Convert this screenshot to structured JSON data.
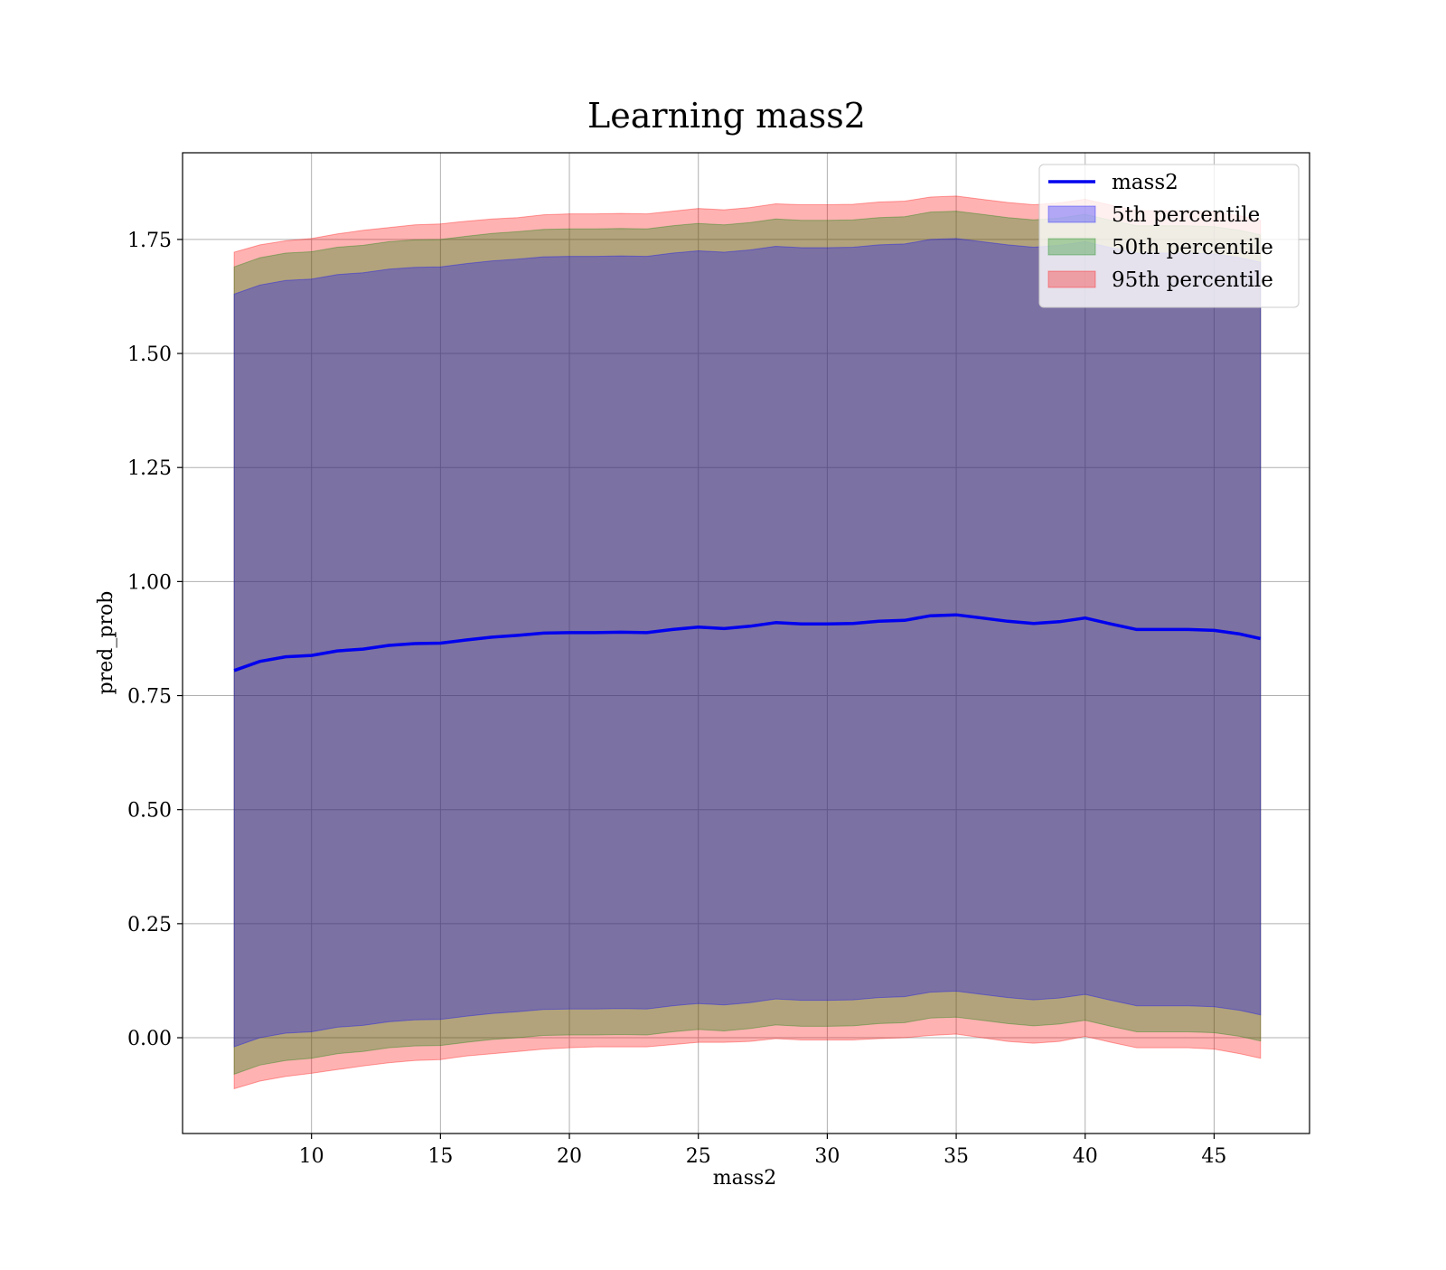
{
  "chart_data": {
    "type": "area",
    "title": "Learning mass2",
    "xlabel": "mass2",
    "ylabel": "pred_prob",
    "xlim": [
      5.0,
      48.7
    ],
    "ylim": [
      -0.21,
      1.94
    ],
    "xticks": [
      10,
      15,
      20,
      25,
      30,
      35,
      40,
      45
    ],
    "xtick_labels": [
      "10",
      "15",
      "20",
      "25",
      "30",
      "35",
      "40",
      "45"
    ],
    "yticks": [
      0.0,
      0.25,
      0.5,
      0.75,
      1.0,
      1.25,
      1.5,
      1.75
    ],
    "ytick_labels": [
      "0.00",
      "0.25",
      "0.50",
      "0.75",
      "1.00",
      "1.25",
      "1.50",
      "1.75"
    ],
    "grid": true,
    "legend_position": "upper-right",
    "x": [
      7.0,
      8.0,
      9.0,
      10.0,
      11.0,
      12.0,
      13.0,
      14.0,
      15.0,
      16.0,
      17.0,
      18.0,
      19.0,
      20.0,
      21.0,
      22.0,
      23.0,
      24.0,
      25.0,
      26.0,
      27.0,
      28.0,
      29.0,
      30.0,
      31.0,
      32.0,
      33.0,
      34.0,
      35.0,
      36.0,
      37.0,
      38.0,
      39.0,
      40.0,
      41.0,
      42.0,
      43.0,
      44.0,
      45.0,
      46.0,
      46.8
    ],
    "line": {
      "name": "mass2",
      "color": "#0000ee",
      "values": [
        0.805,
        0.825,
        0.835,
        0.838,
        0.848,
        0.852,
        0.86,
        0.864,
        0.865,
        0.872,
        0.878,
        0.882,
        0.887,
        0.888,
        0.888,
        0.889,
        0.888,
        0.895,
        0.9,
        0.897,
        0.902,
        0.91,
        0.907,
        0.907,
        0.908,
        0.913,
        0.915,
        0.925,
        0.927,
        0.92,
        0.913,
        0.908,
        0.912,
        0.92,
        0.907,
        0.895,
        0.895,
        0.895,
        0.893,
        0.885,
        0.875
      ]
    },
    "bands": [
      {
        "name": "95th percentile",
        "color": "#ff0000",
        "opacity": 0.3,
        "lower": [
          -0.112,
          -0.095,
          -0.085,
          -0.078,
          -0.07,
          -0.062,
          -0.055,
          -0.05,
          -0.048,
          -0.04,
          -0.035,
          -0.03,
          -0.025,
          -0.022,
          -0.02,
          -0.02,
          -0.02,
          -0.015,
          -0.01,
          -0.01,
          -0.008,
          -0.002,
          -0.005,
          -0.005,
          -0.005,
          -0.002,
          0.0,
          0.005,
          0.008,
          0.0,
          -0.008,
          -0.012,
          -0.008,
          0.003,
          -0.01,
          -0.022,
          -0.022,
          -0.022,
          -0.025,
          -0.035,
          -0.045
        ],
        "upper": [
          1.722,
          1.738,
          1.747,
          1.752,
          1.762,
          1.77,
          1.776,
          1.782,
          1.784,
          1.79,
          1.795,
          1.798,
          1.804,
          1.806,
          1.806,
          1.807,
          1.806,
          1.812,
          1.818,
          1.815,
          1.82,
          1.828,
          1.826,
          1.826,
          1.827,
          1.832,
          1.834,
          1.843,
          1.845,
          1.838,
          1.831,
          1.826,
          1.83,
          1.838,
          1.825,
          1.813,
          1.813,
          1.813,
          1.81,
          1.802,
          1.792
        ]
      },
      {
        "name": "50th percentile",
        "color": "#008000",
        "opacity": 0.3,
        "lower": [
          -0.08,
          -0.06,
          -0.05,
          -0.045,
          -0.035,
          -0.03,
          -0.022,
          -0.018,
          -0.017,
          -0.01,
          -0.004,
          0.0,
          0.005,
          0.006,
          0.006,
          0.007,
          0.006,
          0.013,
          0.018,
          0.015,
          0.02,
          0.028,
          0.025,
          0.025,
          0.026,
          0.031,
          0.033,
          0.043,
          0.045,
          0.038,
          0.031,
          0.026,
          0.03,
          0.038,
          0.025,
          0.013,
          0.013,
          0.013,
          0.011,
          0.003,
          -0.007
        ],
        "upper": [
          1.69,
          1.71,
          1.72,
          1.723,
          1.733,
          1.737,
          1.745,
          1.749,
          1.75,
          1.757,
          1.763,
          1.767,
          1.772,
          1.773,
          1.773,
          1.774,
          1.773,
          1.78,
          1.785,
          1.782,
          1.787,
          1.795,
          1.792,
          1.792,
          1.793,
          1.798,
          1.8,
          1.81,
          1.812,
          1.805,
          1.798,
          1.793,
          1.797,
          1.805,
          1.792,
          1.78,
          1.78,
          1.78,
          1.778,
          1.77,
          1.76
        ]
      },
      {
        "name": "5th percentile",
        "color": "#0000ff",
        "opacity": 0.3,
        "lower": [
          -0.02,
          0.0,
          0.01,
          0.013,
          0.023,
          0.027,
          0.035,
          0.039,
          0.04,
          0.047,
          0.053,
          0.057,
          0.062,
          0.063,
          0.063,
          0.064,
          0.063,
          0.07,
          0.075,
          0.072,
          0.077,
          0.085,
          0.082,
          0.082,
          0.083,
          0.088,
          0.09,
          0.1,
          0.102,
          0.095,
          0.088,
          0.083,
          0.087,
          0.095,
          0.082,
          0.07,
          0.07,
          0.07,
          0.068,
          0.06,
          0.05
        ],
        "upper": [
          1.63,
          1.65,
          1.66,
          1.663,
          1.673,
          1.677,
          1.685,
          1.689,
          1.69,
          1.697,
          1.703,
          1.707,
          1.712,
          1.713,
          1.713,
          1.714,
          1.713,
          1.72,
          1.725,
          1.722,
          1.727,
          1.735,
          1.732,
          1.732,
          1.733,
          1.738,
          1.74,
          1.75,
          1.752,
          1.745,
          1.738,
          1.733,
          1.737,
          1.745,
          1.732,
          1.72,
          1.72,
          1.72,
          1.718,
          1.71,
          1.7
        ]
      }
    ],
    "legend": [
      {
        "label": "mass2",
        "kind": "line",
        "color": "#0000ee"
      },
      {
        "label": "5th percentile",
        "kind": "patch",
        "color": "#0000ff"
      },
      {
        "label": "50th percentile",
        "kind": "patch",
        "color": "#008000"
      },
      {
        "label": "95th percentile",
        "kind": "patch",
        "color": "#ff0000"
      }
    ]
  }
}
